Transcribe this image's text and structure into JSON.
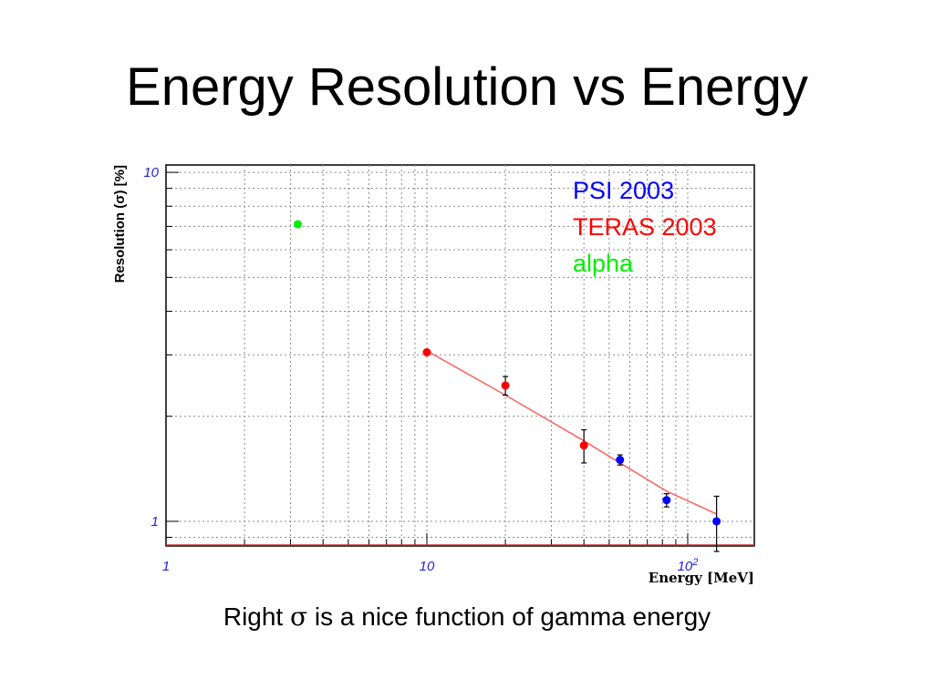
{
  "slide": {
    "title": "Energy Resolution vs Energy",
    "caption_prefix": "Right ",
    "caption_symbol": "σ",
    "caption_suffix": " is a nice function of gamma energy"
  },
  "chart_data": {
    "type": "scatter",
    "x_scale": "log",
    "y_scale": "log",
    "xlim": [
      1,
      180
    ],
    "ylim": [
      0.85,
      10.5
    ],
    "xlabel": "Energy [MeV]",
    "ylabel": "Resolution (σ) [%]",
    "x_ticks": [
      {
        "value": 1,
        "label": "1"
      },
      {
        "value": 10,
        "label": "10"
      },
      {
        "value": 100,
        "label": "10",
        "sup": "2"
      }
    ],
    "y_ticks": [
      {
        "value": 1,
        "label": "1"
      },
      {
        "value": 10,
        "label": "10"
      }
    ],
    "grid": true,
    "legend_position": "top-right",
    "series": [
      {
        "name": "PSI 2003",
        "color": "#0000ff",
        "points": [
          {
            "x": 55,
            "y": 1.5,
            "err": 0.05
          },
          {
            "x": 83,
            "y": 1.15,
            "err": 0.05
          },
          {
            "x": 129,
            "y": 1.0,
            "err": 0.18
          }
        ]
      },
      {
        "name": "TERAS 2003",
        "color": "#ff0000",
        "points": [
          {
            "x": 10,
            "y": 3.05,
            "err": 0.05
          },
          {
            "x": 20,
            "y": 2.45,
            "err": 0.15
          },
          {
            "x": 40,
            "y": 1.65,
            "err": 0.18
          }
        ]
      },
      {
        "name": "alpha",
        "color": "#00ee00",
        "points": [
          {
            "x": 3.2,
            "y": 7.1,
            "err": 0
          }
        ]
      }
    ],
    "fit": {
      "color": "#ff6060",
      "x_start": 10,
      "x_end": 129,
      "points": [
        [
          10,
          3.08
        ],
        [
          20,
          2.3
        ],
        [
          40,
          1.7
        ],
        [
          55,
          1.47
        ],
        [
          83,
          1.22
        ],
        [
          129,
          1.05
        ]
      ]
    }
  }
}
